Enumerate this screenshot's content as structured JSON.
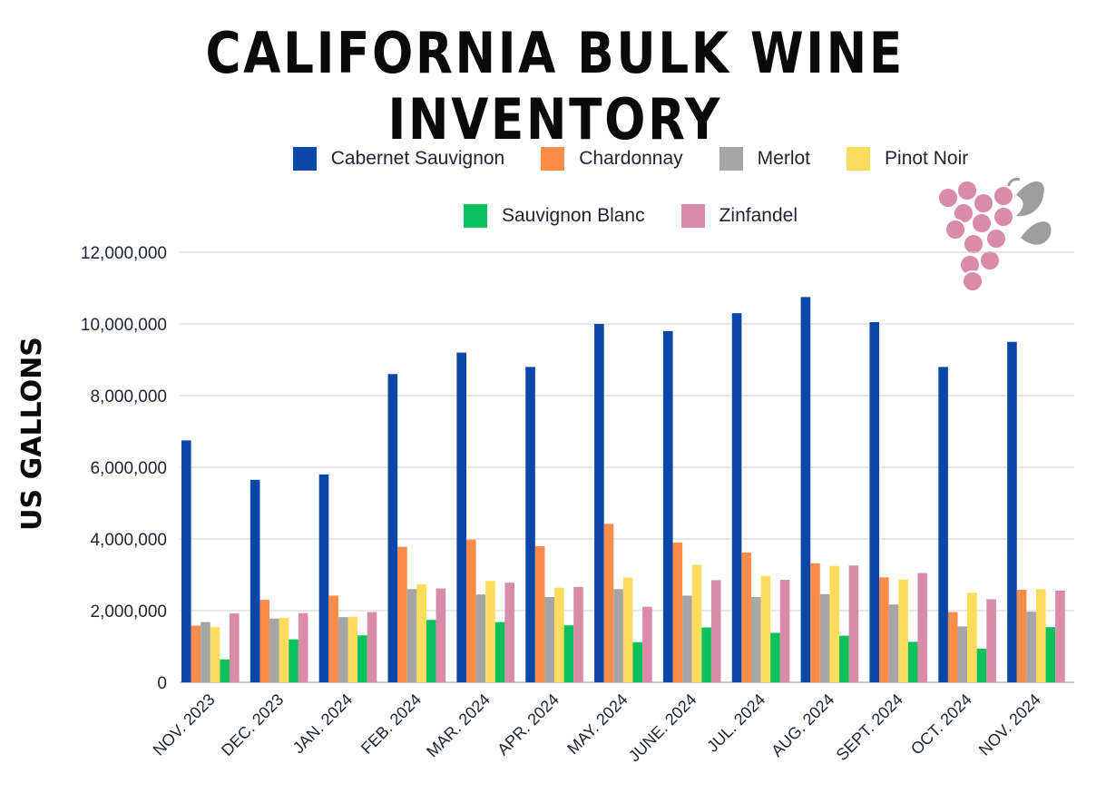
{
  "title": "CALIFORNIA BULK WINE INVENTORY",
  "logo_icon": "grape-cluster-icon",
  "chart_data": {
    "type": "bar",
    "title": "CALIFORNIA BULK WINE INVENTORY",
    "xlabel": "",
    "ylabel": "US GALLONS",
    "ylim": [
      0,
      12000000
    ],
    "yticks": [
      0,
      2000000,
      4000000,
      6000000,
      8000000,
      10000000,
      12000000
    ],
    "ytick_labels": [
      "0",
      "2,000,000",
      "4,000,000",
      "6,000,000",
      "8,000,000",
      "10,000,000",
      "12,000,000"
    ],
    "grid": true,
    "legend_position": "top",
    "categories": [
      "NOV. 2023",
      "DEC. 2023",
      "JAN. 2024",
      "FEB. 2024",
      "MAR. 2024",
      "APR. 2024",
      "MAY. 2024",
      "JUNE. 2024",
      "JUL. 2024",
      "AUG. 2024",
      "SEPT. 2024",
      "OCT. 2024",
      "NOV. 2024"
    ],
    "series": [
      {
        "name": "Cabernet Sauvignon",
        "color": "#0a47a9",
        "values": [
          6750000,
          5650000,
          5800000,
          8600000,
          9200000,
          8800000,
          10000000,
          9800000,
          10300000,
          10750000,
          10050000,
          8800000,
          9500000
        ]
      },
      {
        "name": "Chardonnay",
        "color": "#fb8c4a",
        "values": [
          1580000,
          2300000,
          2420000,
          3780000,
          3980000,
          3800000,
          4420000,
          3900000,
          3620000,
          3320000,
          2930000,
          1960000,
          2580000
        ]
      },
      {
        "name": "Merlot",
        "color": "#a6a6a6",
        "values": [
          1680000,
          1780000,
          1820000,
          2600000,
          2450000,
          2380000,
          2600000,
          2420000,
          2380000,
          2460000,
          2170000,
          1560000,
          1970000
        ]
      },
      {
        "name": "Pinot Noir",
        "color": "#fcdc5c",
        "values": [
          1540000,
          1800000,
          1830000,
          2740000,
          2830000,
          2640000,
          2920000,
          3280000,
          2970000,
          3250000,
          2870000,
          2500000,
          2600000
        ]
      },
      {
        "name": "Sauvignon Blanc",
        "color": "#0ac15b",
        "values": [
          640000,
          1200000,
          1310000,
          1740000,
          1680000,
          1590000,
          1120000,
          1530000,
          1380000,
          1300000,
          1130000,
          940000,
          1540000
        ]
      },
      {
        "name": "Zinfandel",
        "color": "#d98ba9",
        "values": [
          1920000,
          1930000,
          1960000,
          2620000,
          2780000,
          2660000,
          2110000,
          2850000,
          2860000,
          3260000,
          3050000,
          2320000,
          2560000
        ]
      }
    ]
  }
}
